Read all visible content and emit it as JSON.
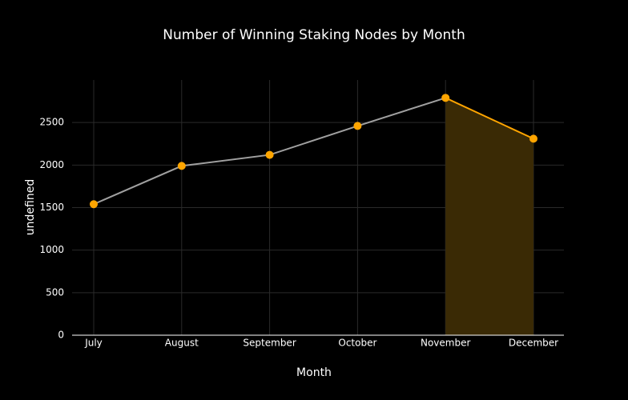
{
  "chart_data": {
    "type": "line",
    "title": "Number of Winning Staking Nodes by Month",
    "x_label": "Month",
    "y_label": "undefined",
    "categories": [
      "July",
      "August",
      "September",
      "October",
      "November",
      "December"
    ],
    "values": [
      1540,
      1990,
      2120,
      2460,
      2790,
      2310
    ],
    "line_color": "#a0a0a0",
    "marker_color": "#ffa500",
    "highlight_categories": [
      "November",
      "December"
    ],
    "highlight_color": "#ffa500",
    "highlight_fill": "#3a2a05",
    "ylim": [
      0,
      3000
    ],
    "yticks": [
      0,
      500,
      1000,
      1500,
      2000,
      2500
    ],
    "grid": true
  }
}
